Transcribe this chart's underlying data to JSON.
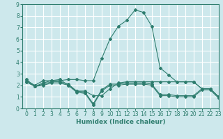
{
  "title": "",
  "xlabel": "Humidex (Indice chaleur)",
  "ylabel": "",
  "background_color": "#cde8ec",
  "grid_color": "#ffffff",
  "line_color": "#2e7d6e",
  "xlim": [
    -0.5,
    23
  ],
  "ylim": [
    0,
    9
  ],
  "xticks": [
    0,
    1,
    2,
    3,
    4,
    5,
    6,
    7,
    8,
    9,
    10,
    11,
    12,
    13,
    14,
    15,
    16,
    17,
    18,
    19,
    20,
    21,
    22,
    23
  ],
  "yticks": [
    0,
    1,
    2,
    3,
    4,
    5,
    6,
    7,
    8,
    9
  ],
  "line1_x": [
    0,
    1,
    2,
    3,
    4,
    5,
    6,
    7,
    8,
    9,
    10,
    11,
    12,
    13,
    14,
    15,
    16,
    17,
    18,
    19,
    20,
    21,
    22,
    23
  ],
  "line1_y": [
    2.5,
    1.9,
    2.2,
    2.4,
    2.4,
    2.5,
    2.5,
    2.4,
    2.4,
    4.3,
    6.0,
    7.1,
    7.6,
    8.5,
    8.3,
    7.1,
    3.5,
    2.9,
    2.3,
    2.3,
    2.3,
    1.7,
    1.7,
    1.0
  ],
  "line2_x": [
    0,
    1,
    2,
    3,
    4,
    5,
    6,
    7,
    8,
    9,
    10,
    11,
    12,
    13,
    14,
    15,
    16,
    17,
    18,
    19,
    20,
    21,
    22,
    23
  ],
  "line2_y": [
    2.4,
    2.0,
    2.4,
    2.4,
    2.5,
    2.0,
    1.5,
    1.5,
    1.1,
    1.1,
    1.7,
    2.2,
    2.3,
    2.3,
    2.3,
    2.3,
    2.3,
    2.3,
    2.3,
    2.3,
    2.3,
    1.7,
    1.7,
    1.0
  ],
  "line3_x": [
    0,
    1,
    2,
    3,
    4,
    5,
    6,
    7,
    8,
    9,
    10,
    11,
    12,
    13,
    14,
    15,
    16,
    17,
    18,
    19,
    20,
    21,
    22,
    23
  ],
  "line3_y": [
    2.3,
    1.9,
    2.1,
    2.3,
    2.3,
    2.1,
    1.5,
    1.4,
    0.4,
    1.6,
    2.1,
    2.1,
    2.2,
    2.2,
    2.2,
    2.1,
    1.2,
    1.2,
    1.1,
    1.1,
    1.1,
    1.7,
    1.7,
    1.0
  ],
  "line4_x": [
    0,
    1,
    2,
    3,
    4,
    5,
    6,
    7,
    8,
    9,
    10,
    11,
    12,
    13,
    14,
    15,
    16,
    17,
    18,
    19,
    20,
    21,
    22,
    23
  ],
  "line4_y": [
    2.3,
    1.9,
    2.0,
    2.2,
    2.2,
    2.0,
    1.4,
    1.3,
    0.3,
    1.5,
    2.0,
    2.0,
    2.1,
    2.1,
    2.1,
    2.0,
    1.1,
    1.1,
    1.0,
    1.0,
    1.0,
    1.6,
    1.6,
    0.9
  ],
  "marker": "D",
  "markersize": 2.0,
  "linewidth": 0.8,
  "xlabel_fontsize": 6.5,
  "tick_fontsize": 5.5
}
